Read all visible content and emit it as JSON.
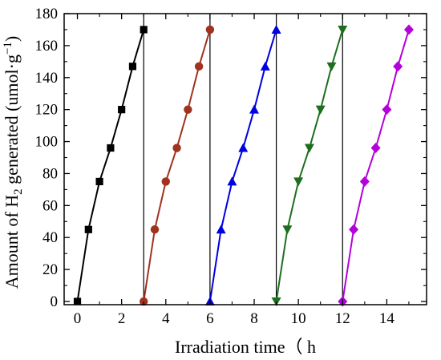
{
  "chart_data": {
    "type": "line",
    "xlabel": "Irradiation time（ h",
    "ylabel": {
      "prefix": "Amount of H",
      "subscript": "2",
      "middle": " generated (umol·g",
      "superscript": "−1",
      "suffix": ")"
    },
    "xlim": [
      -0.6,
      15.8
    ],
    "ylim": [
      -2,
      180
    ],
    "xticks": [
      0,
      2,
      4,
      6,
      8,
      10,
      12,
      14
    ],
    "yticks": [
      0,
      20,
      40,
      60,
      80,
      100,
      120,
      140,
      160,
      180
    ],
    "cycle_boundaries": [
      3,
      6,
      9,
      12
    ],
    "grid": false,
    "series": [
      {
        "color": "#000000",
        "marker": "square",
        "x": [
          0,
          0.5,
          1,
          1.5,
          2,
          2.5,
          3
        ],
        "y": [
          0,
          45,
          75,
          96,
          120,
          147,
          170
        ]
      },
      {
        "color": "#a0321e",
        "marker": "circle",
        "x": [
          3,
          3.5,
          4,
          4.5,
          5,
          5.5,
          6
        ],
        "y": [
          0,
          45,
          75,
          96,
          120,
          147,
          170
        ]
      },
      {
        "color": "#0000e0",
        "marker": "triangle-up",
        "x": [
          6,
          6.5,
          7,
          7.5,
          8,
          8.5,
          9
        ],
        "y": [
          0,
          45,
          75,
          96,
          120,
          147,
          170
        ]
      },
      {
        "color": "#1e6e1e",
        "marker": "triangle-down",
        "x": [
          9,
          9.5,
          10,
          10.5,
          11,
          11.5,
          12
        ],
        "y": [
          0,
          45,
          75,
          96,
          120,
          147,
          170
        ]
      },
      {
        "color": "#b400dc",
        "marker": "diamond",
        "x": [
          12,
          12.5,
          13,
          13.5,
          14,
          14.5,
          15
        ],
        "y": [
          0,
          45,
          75,
          96,
          120,
          147,
          170
        ]
      }
    ]
  }
}
